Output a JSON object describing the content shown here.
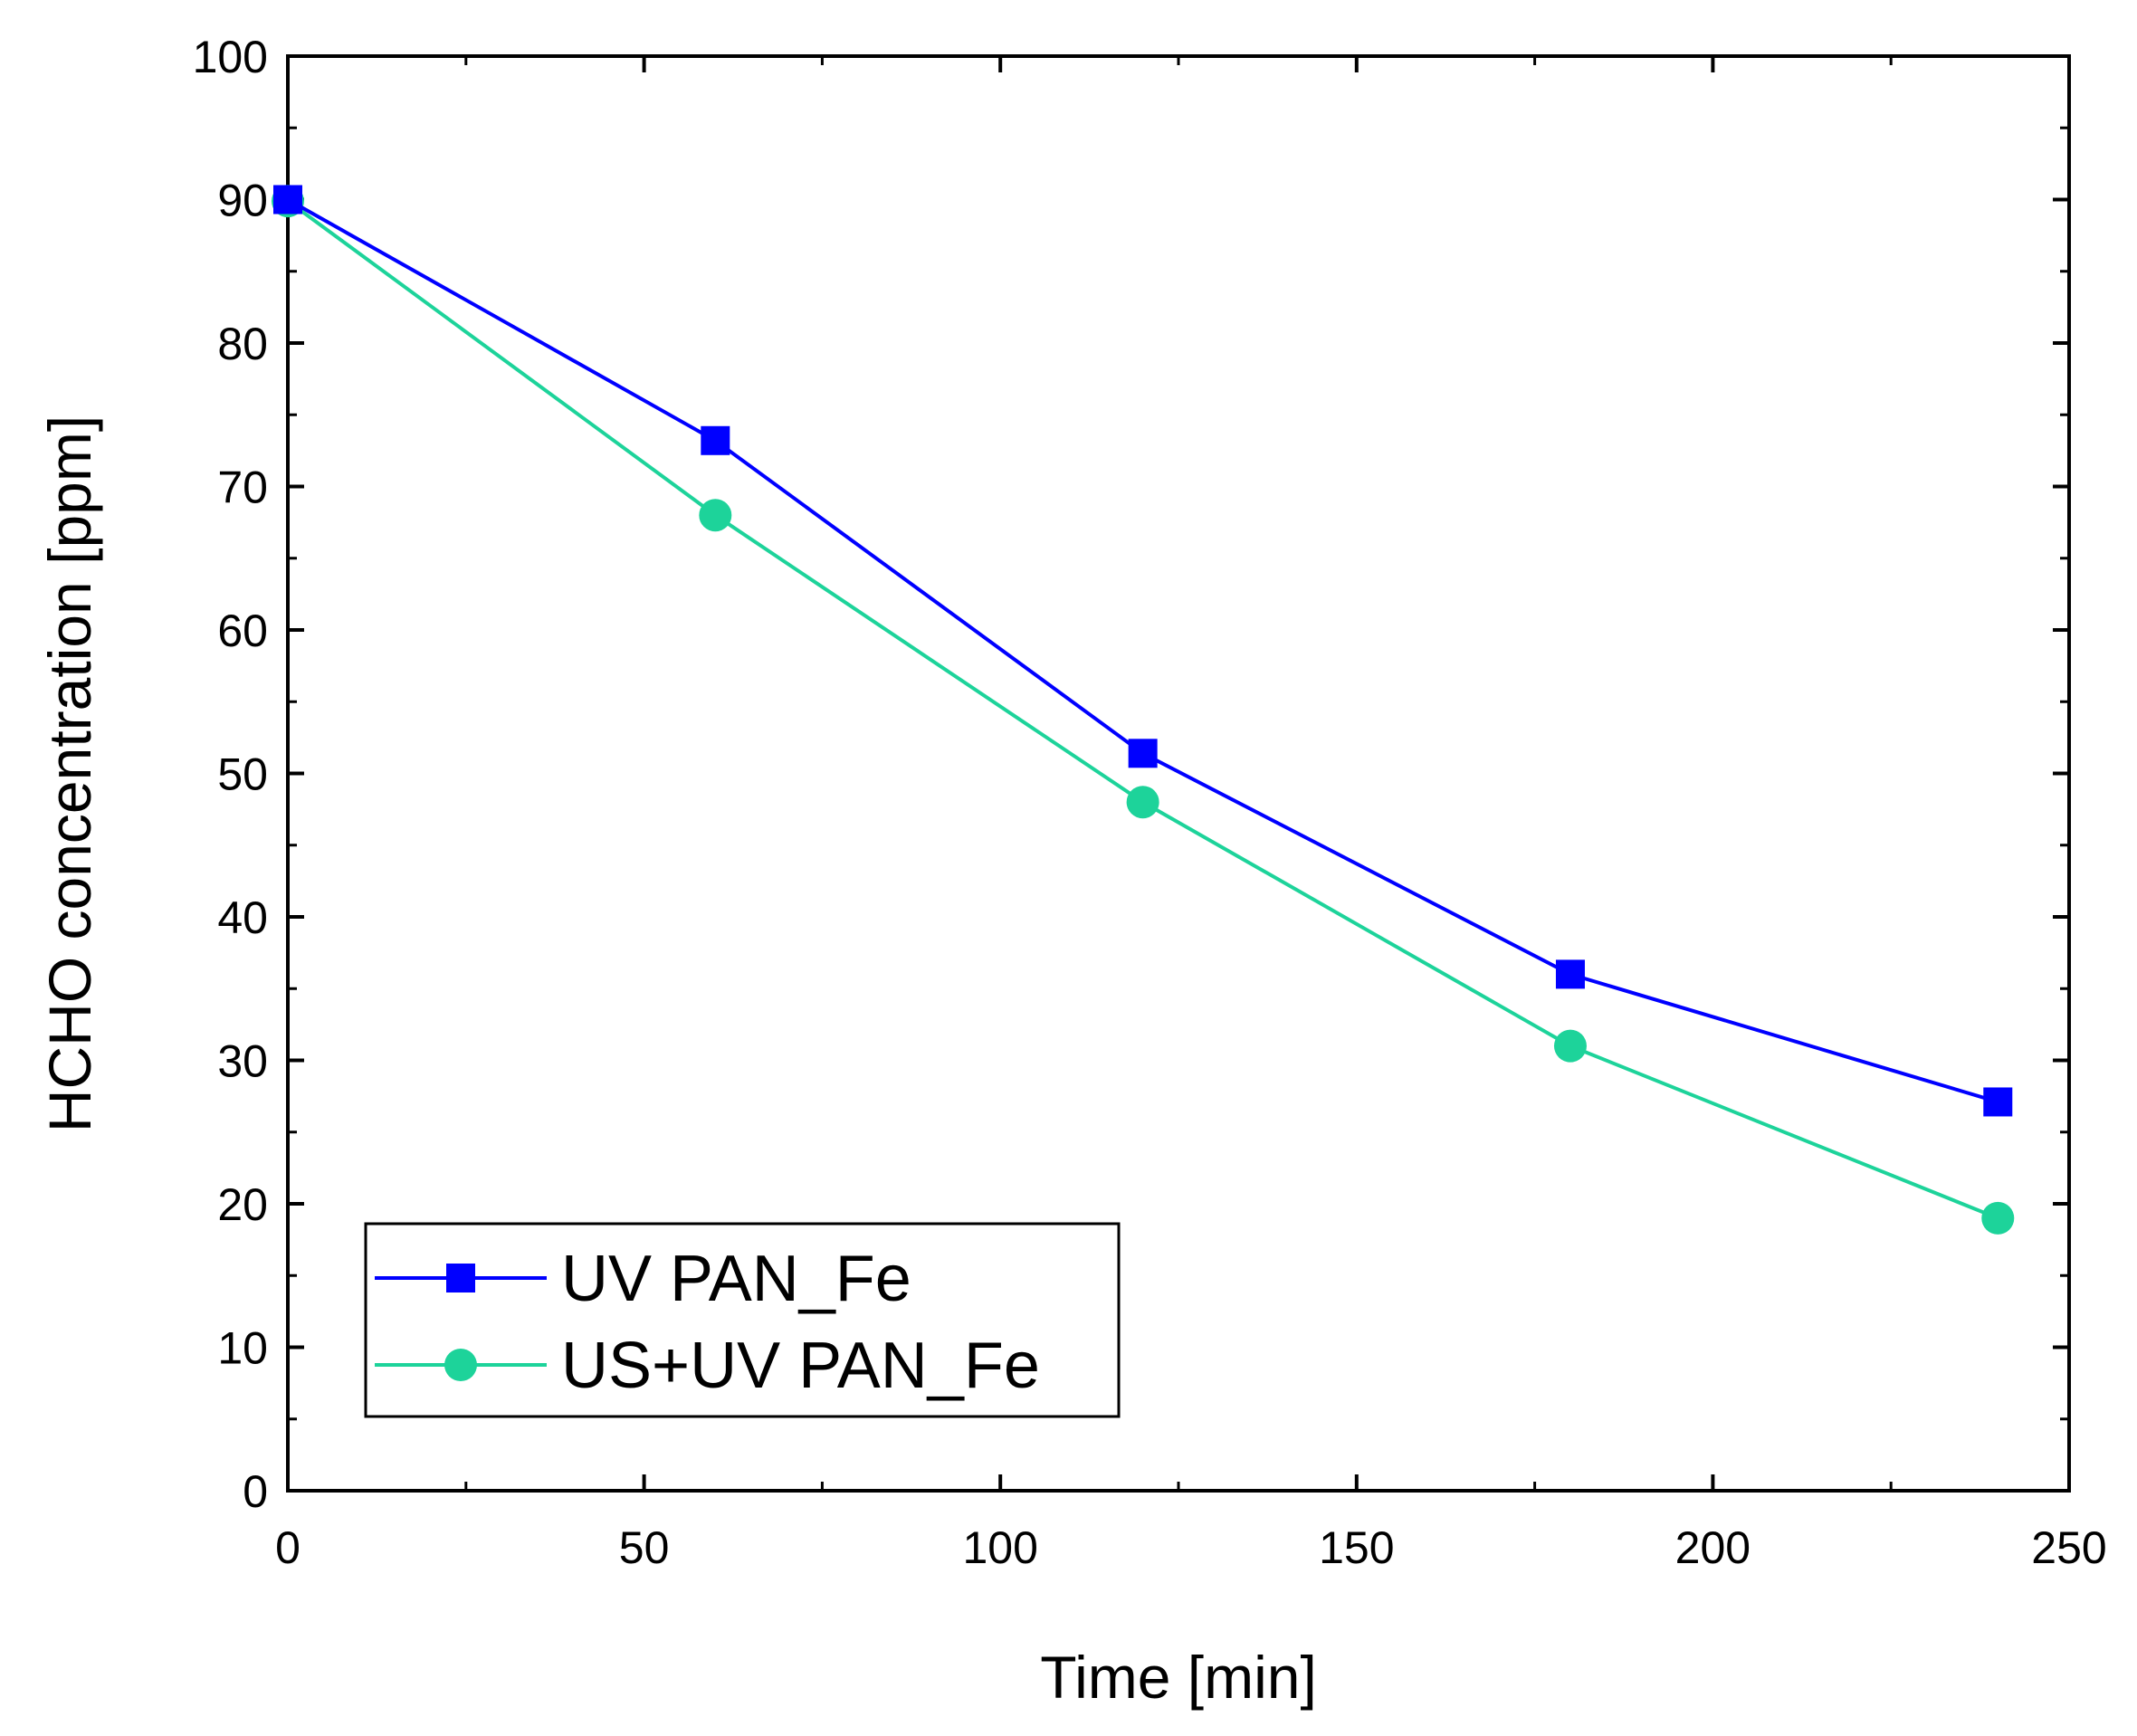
{
  "chart_data": {
    "type": "line",
    "title": "",
    "xlabel": "Time [min]",
    "ylabel": "HCHO concentration [ppm]",
    "xlim": [
      0,
      250
    ],
    "ylim": [
      0,
      100
    ],
    "xticks": [
      0,
      50,
      100,
      150,
      200,
      250
    ],
    "yticks": [
      0,
      10,
      20,
      30,
      40,
      50,
      60,
      70,
      80,
      90,
      100
    ],
    "grid": false,
    "legend_position": "bottom-left",
    "series": [
      {
        "name": "UV PAN_Fe",
        "color": "#0000ff",
        "marker": "square",
        "x": [
          0,
          60,
          120,
          180,
          240
        ],
        "y": [
          90,
          73.2,
          51.4,
          36,
          27.1
        ]
      },
      {
        "name": "US+UV PAN_Fe",
        "color": "#1dd39a",
        "marker": "circle",
        "x": [
          0,
          60,
          120,
          180,
          240
        ],
        "y": [
          89.9,
          68,
          48,
          31,
          19
        ]
      }
    ]
  }
}
